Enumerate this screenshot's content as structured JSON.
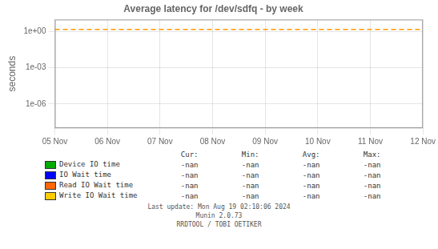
{
  "chart_data": {
    "type": "line",
    "title": "Average latency for /dev/sdfq - by week",
    "ylabel": "seconds",
    "categories": [
      "05 Nov",
      "06 Nov",
      "07 Nov",
      "08 Nov",
      "09 Nov",
      "10 Nov",
      "11 Nov",
      "12 Nov"
    ],
    "series": [
      {
        "name": "Device IO time",
        "color": "#00aa00",
        "values": [
          null,
          null,
          null,
          null,
          null,
          null,
          null,
          null
        ],
        "stats": [
          "-nan",
          "-nan",
          "-nan",
          "-nan"
        ]
      },
      {
        "name": "IO Wait time",
        "color": "#0000ff",
        "values": [
          null,
          null,
          null,
          null,
          null,
          null,
          null,
          null
        ],
        "stats": [
          "-nan",
          "-nan",
          "-nan",
          "-nan"
        ]
      },
      {
        "name": "Read IO Wait time",
        "color": "#ff6600",
        "values": [
          null,
          null,
          null,
          null,
          null,
          null,
          null,
          null
        ],
        "stats": [
          "-nan",
          "-nan",
          "-nan",
          "-nan"
        ]
      },
      {
        "name": "Write IO Wait time",
        "color": "#ffcc00",
        "values": [
          null,
          null,
          null,
          null,
          null,
          null,
          null,
          null
        ],
        "stats": [
          "-nan",
          "-nan",
          "-nan",
          "-nan"
        ]
      }
    ],
    "stat_columns": [
      "Cur:",
      "Min:",
      "Avg:",
      "Max:"
    ],
    "reference_lines": [
      {
        "y": 1.5,
        "color": "#ff9900",
        "line_style": "dashed"
      }
    ],
    "log": "y",
    "ylim": [
      1e-08,
      10
    ],
    "yticks": [
      {
        "value": 1e-06,
        "label": "1e-06"
      },
      {
        "value": 0.001,
        "label": "1e-03"
      },
      {
        "value": 1,
        "label": "1e+00"
      }
    ],
    "grid": true,
    "legend": "bottom",
    "annotations": [
      "Last update: Mon Aug 19 02:10:06 2024",
      "Munin 2.0.73",
      "RRDTOOL / TOBI OETIKER"
    ]
  }
}
